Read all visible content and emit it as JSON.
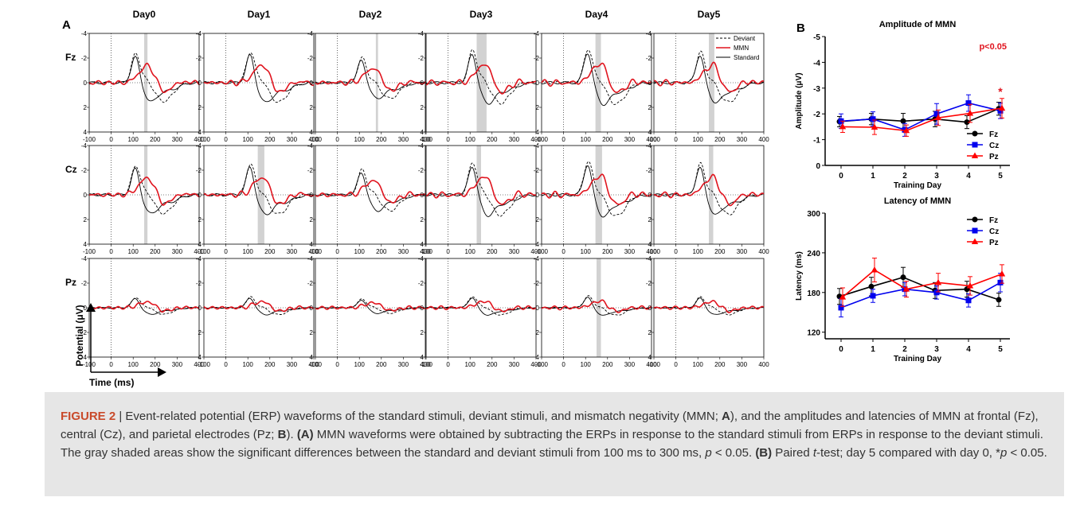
{
  "panel_a": {
    "label": "A",
    "days": [
      "Day0",
      "Day1",
      "Day2",
      "Day3",
      "Day4",
      "Day5"
    ],
    "electrodes": [
      "Fz",
      "Cz",
      "Pz"
    ],
    "legend": [
      "Deviant",
      "MMN",
      "Standard"
    ],
    "y_axis_title": "Potential (μV)",
    "x_axis_title": "Time (ms)",
    "y_ticks": [
      "-4",
      "-2",
      "0",
      "2",
      "4"
    ],
    "x_ticks": [
      "-100",
      "0",
      "100",
      "200",
      "300",
      "400"
    ],
    "significant_windows": {
      "Fz": [
        [
          150,
          165
        ],
        null,
        [
          175,
          185
        ],
        [
          130,
          175
        ],
        [
          145,
          170
        ],
        [
          150,
          175
        ]
      ],
      "Cz": [
        [
          150,
          165
        ],
        [
          145,
          175
        ],
        null,
        [
          130,
          150
        ],
        [
          145,
          175
        ],
        [
          150,
          170
        ]
      ],
      "Pz": [
        null,
        null,
        null,
        null,
        [
          150,
          170
        ],
        null
      ]
    }
  },
  "panel_b": {
    "label": "B"
  },
  "chart_data": [
    {
      "type": "line",
      "title": "Amplitude of MMN",
      "xlabel": "Training Day",
      "ylabel": "Amplitude (μV)",
      "x": [
        0,
        1,
        2,
        3,
        4,
        5
      ],
      "ylim": [
        0,
        -5
      ],
      "y_inverted": true,
      "y_ticks": [
        0,
        -1,
        -2,
        -3,
        -4,
        -5
      ],
      "y_tick_labels": [
        "0",
        "-1",
        "-2",
        "-3",
        "-4",
        "-5"
      ],
      "legend_position": "bottom-right",
      "annotation": "p<0.05",
      "significance_marker": {
        "x": 5,
        "label": "*"
      },
      "series": [
        {
          "name": "Fz",
          "color": "#000000",
          "marker": "circle",
          "values": [
            -1.7,
            -1.8,
            -1.72,
            -1.8,
            -1.68,
            -2.2
          ],
          "errors": [
            0.2,
            0.22,
            0.3,
            0.3,
            0.25,
            0.25
          ]
        },
        {
          "name": "Cz",
          "color": "#0000ee",
          "marker": "square",
          "values": [
            -1.72,
            -1.8,
            -1.38,
            -2.0,
            -2.42,
            -2.12
          ],
          "errors": [
            0.28,
            0.28,
            0.25,
            0.4,
            0.32,
            0.3
          ]
        },
        {
          "name": "Pz",
          "color": "#ff0000",
          "marker": "triangle",
          "values": [
            -1.5,
            -1.48,
            -1.35,
            -1.85,
            -2.02,
            -2.22
          ],
          "errors": [
            0.22,
            0.28,
            0.22,
            0.3,
            0.35,
            0.38
          ]
        }
      ]
    },
    {
      "type": "line",
      "title": "Latency of MMN",
      "xlabel": "Training Day",
      "ylabel": "Latency (ms)",
      "x": [
        0,
        1,
        2,
        3,
        4,
        5
      ],
      "ylim": [
        110,
        300
      ],
      "y_ticks": [
        120,
        180,
        240,
        300
      ],
      "y_tick_labels": [
        "120",
        "180",
        "240",
        "300"
      ],
      "legend_position": "top-right",
      "series": [
        {
          "name": "Fz",
          "color": "#000000",
          "marker": "circle",
          "values": [
            174,
            189,
            203,
            183,
            185,
            169
          ],
          "errors": [
            12,
            14,
            15,
            12,
            12,
            10
          ]
        },
        {
          "name": "Cz",
          "color": "#0000ee",
          "marker": "square",
          "values": [
            157,
            175,
            185,
            180,
            168,
            195
          ],
          "errors": [
            14,
            10,
            10,
            10,
            10,
            14
          ]
        },
        {
          "name": "Pz",
          "color": "#ff0000",
          "marker": "triangle",
          "values": [
            173,
            214,
            185,
            195,
            190,
            208
          ],
          "errors": [
            14,
            18,
            12,
            14,
            14,
            14
          ]
        }
      ]
    }
  ],
  "caption": {
    "figure_label": "FIGURE 2",
    "separator": " | ",
    "text1": "Event-related potential (ERP) waveforms of the standard stimuli, deviant stimuli, and mismatch negativity (MMN; ",
    "bold_a": "A",
    "text2": "), and the amplitudes and latencies of MMN at frontal (Fz), central (Cz), and parietal electrodes (Pz; ",
    "bold_b": "B",
    "text3": "). ",
    "bold_a2": "(A)",
    "text4": " MMN waveforms were obtained by subtracting the ERPs in response to the standard stimuli from ERPs in response to the deviant stimuli. The gray shaded areas show the significant differences between the standard and deviant stimuli from 100 ms to 300 ms, ",
    "italic_p": "p",
    "text5": " < 0.05. ",
    "bold_b2": "(B)",
    "text6": " Paired ",
    "italic_t": "t",
    "text7": "-test; day 5 compared with day 0, *",
    "italic_p2": "p",
    "text8": " < 0.05."
  }
}
